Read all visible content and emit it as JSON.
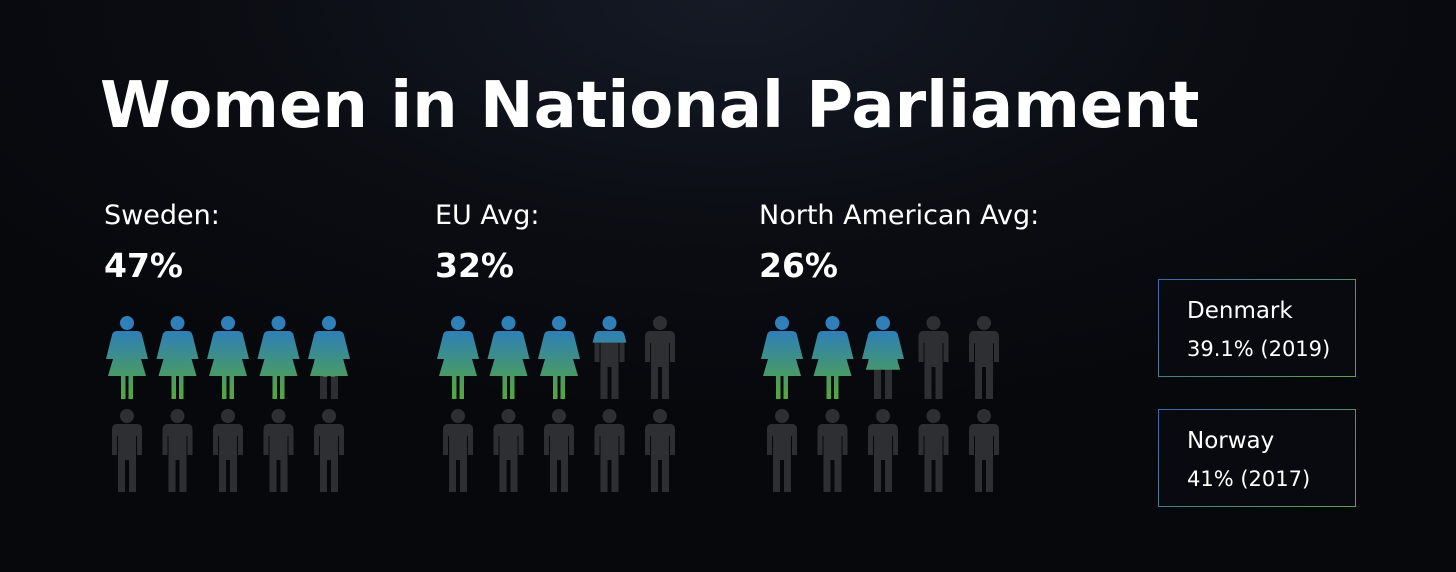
{
  "title": "Women in National Parliament",
  "colors": {
    "woman_top": "#2f7fb8",
    "woman_bottom": "#55a83c",
    "man": "#2e2f33"
  },
  "chart_data": {
    "type": "pictogram",
    "units_per_group": 10,
    "series": [
      {
        "label": "Sweden:",
        "value_text": "47%",
        "value": 47
      },
      {
        "label": "EU Avg:",
        "value_text": "32%",
        "value": 32
      },
      {
        "label": "North American Avg:",
        "value_text": "26%",
        "value": 26
      }
    ]
  },
  "cards": [
    {
      "name": "Denmark",
      "detail": "39.1% (2019)"
    },
    {
      "name": "Norway",
      "detail": "41% (2017)"
    }
  ]
}
